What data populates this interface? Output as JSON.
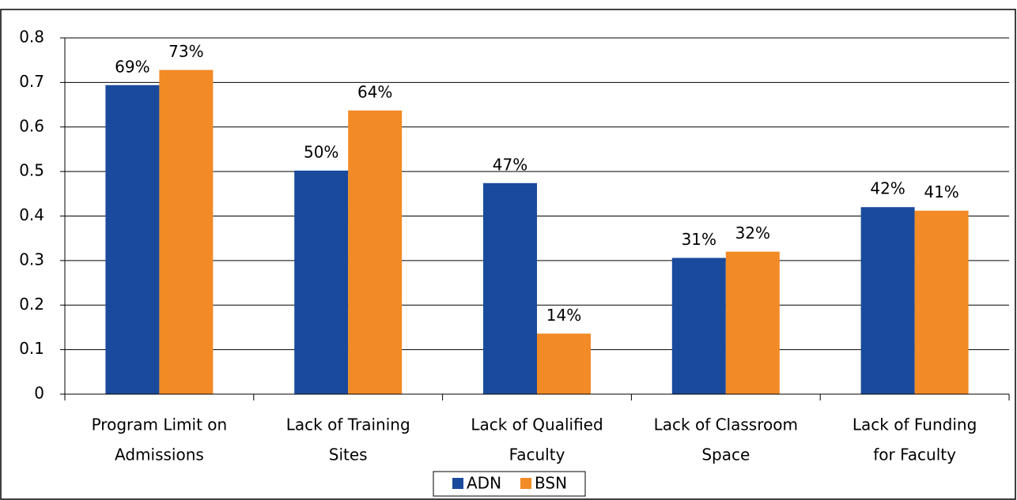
{
  "chart_data": {
    "type": "bar",
    "categories": [
      [
        "Program Limit on",
        "Admissions"
      ],
      [
        "Lack of Training",
        "Sites"
      ],
      [
        "Lack of Qualified",
        "Faculty"
      ],
      [
        "Lack of Classroom",
        "Space"
      ],
      [
        "Lack of Funding",
        "for Faculty"
      ]
    ],
    "series": [
      {
        "name": "ADN",
        "color": "#1a4a9c",
        "values": [
          0.694,
          0.502,
          0.474,
          0.306,
          0.42
        ],
        "value_labels": [
          "69%",
          "50%",
          "47%",
          "31%",
          "42%"
        ]
      },
      {
        "name": "BSN",
        "color": "#f28a25",
        "values": [
          0.728,
          0.637,
          0.136,
          0.32,
          0.412
        ],
        "value_labels": [
          "73%",
          "64%",
          "14%",
          "32%",
          "41%"
        ]
      }
    ],
    "ylim": [
      0,
      0.8
    ],
    "yticks": [
      0,
      0.1,
      0.2,
      0.3,
      0.4,
      0.5,
      0.6,
      0.7,
      0.8
    ],
    "grid": true,
    "legend": "bottom"
  }
}
